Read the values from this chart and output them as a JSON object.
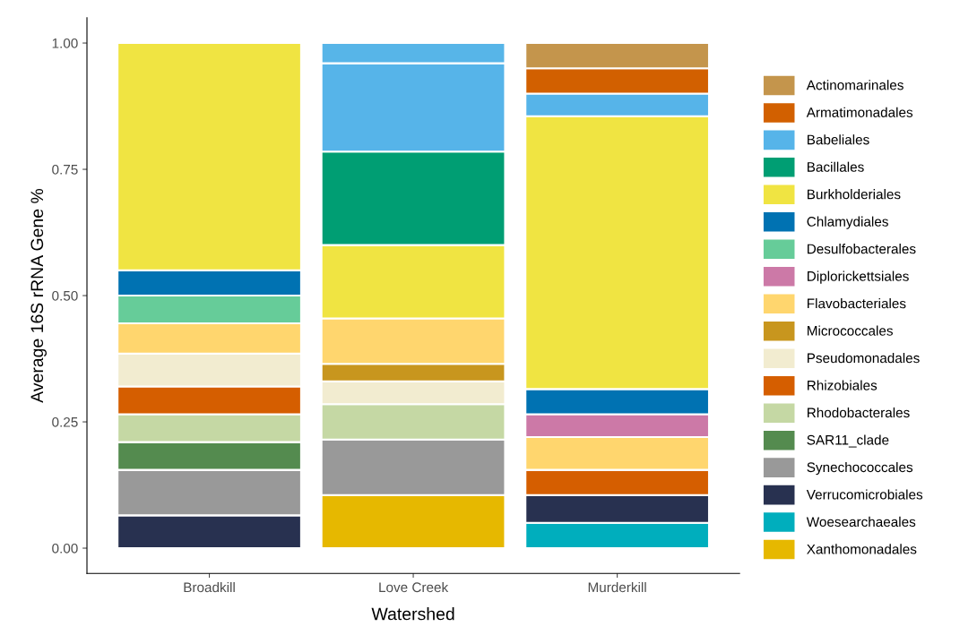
{
  "chart_data": {
    "type": "bar",
    "stacked": true,
    "xlabel": "Watershed",
    "ylabel": "Average 16S rRNA Gene %",
    "categories": [
      "Broadkill",
      "Love Creek",
      "Murderkill"
    ],
    "ylim": [
      -0.05,
      1.05
    ],
    "yticks": [
      {
        "value": 0,
        "label": "0.00"
      },
      {
        "value": 0.25,
        "label": "0.25"
      },
      {
        "value": 0.5,
        "label": "0.50"
      },
      {
        "value": 0.75,
        "label": "0.75"
      },
      {
        "value": 1,
        "label": "1.00"
      }
    ],
    "grid": false,
    "legend": "right",
    "series": [
      {
        "name": "Xanthomonadales",
        "color": "#e6b800",
        "values": [
          null,
          0.105,
          null
        ]
      },
      {
        "name": "Woesearchaeales",
        "color": "#00aebd",
        "values": [
          null,
          null,
          0.05
        ]
      },
      {
        "name": "Verrucomicrobiales",
        "color": "#283150",
        "values": [
          0.065,
          null,
          0.055
        ]
      },
      {
        "name": "Synechococcales",
        "color": "#999999",
        "values": [
          0.09,
          0.11,
          null
        ]
      },
      {
        "name": "SAR11_clade",
        "color": "#548b4f",
        "values": [
          0.055,
          null,
          null
        ]
      },
      {
        "name": "Rhodobacterales",
        "color": "#c5d8a4",
        "values": [
          0.055,
          0.07,
          null
        ]
      },
      {
        "name": "Rhizobiales",
        "color": "#d55e00",
        "values": [
          0.055,
          null,
          0.05
        ]
      },
      {
        "name": "Pseudomonadales",
        "color": "#f2ecd0",
        "values": [
          0.065,
          0.045,
          null
        ]
      },
      {
        "name": "Micrococcales",
        "color": "#c8961e",
        "values": [
          null,
          0.035,
          null
        ]
      },
      {
        "name": "Flavobacteriales",
        "color": "#ffd66e",
        "values": [
          0.06,
          0.09,
          0.065
        ]
      },
      {
        "name": "Diplorickettsiales",
        "color": "#cc79a7",
        "values": [
          null,
          null,
          0.045
        ]
      },
      {
        "name": "Desulfobacterales",
        "color": "#66cc99",
        "values": [
          0.055,
          null,
          null
        ]
      },
      {
        "name": "Chlamydiales",
        "color": "#0072b2",
        "values": [
          0.05,
          null,
          0.05
        ]
      },
      {
        "name": "Burkholderiales",
        "color": "#f0e442",
        "values": [
          0.45,
          0.145,
          0.54
        ]
      },
      {
        "name": "Bacillales",
        "color": "#009e73",
        "values": [
          null,
          0.185,
          null
        ]
      },
      {
        "name": "Babeliales",
        "color": "#56b4e9",
        "values": [
          null,
          0.175,
          0.045
        ]
      },
      {
        "name": "Armatimonadales",
        "color": "#d26000",
        "values": [
          null,
          null,
          0.05
        ]
      },
      {
        "name": "Actinomarinales",
        "color": "#c4954c",
        "values": [
          null,
          null,
          0.05
        ]
      },
      {
        "color": "#57b5e8",
        "values": [
          null,
          0.04,
          null
        ]
      }
    ]
  }
}
